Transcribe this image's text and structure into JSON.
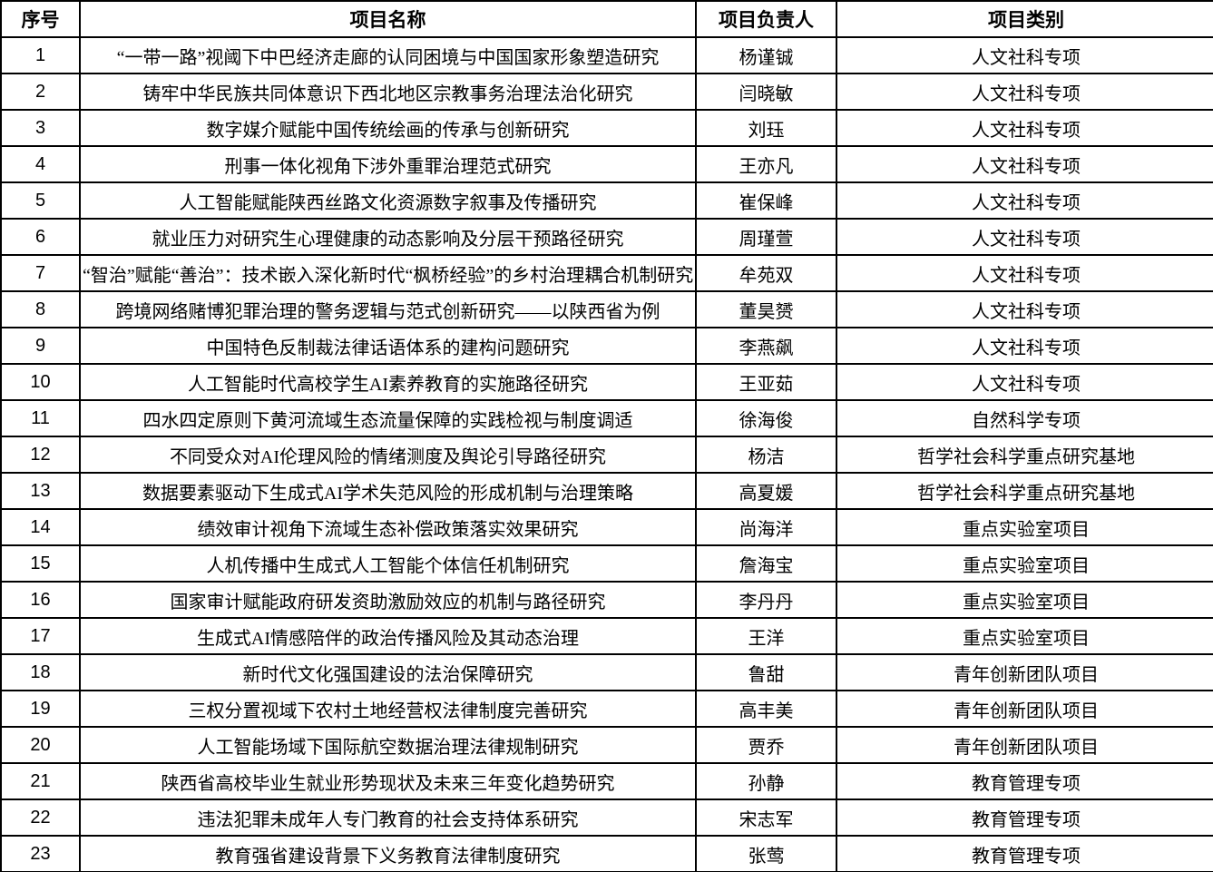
{
  "colors": {
    "border": "#000000",
    "text": "#000000",
    "background": "#ffffff"
  },
  "table": {
    "headers": {
      "no": "序号",
      "name": "项目名称",
      "leader": "项目负责人",
      "category": "项目类别"
    },
    "rows": [
      {
        "no": "1",
        "name": "“一带一路”视阈下中巴经济走廊的认同困境与中国国家形象塑造研究",
        "leader": "杨谨铖",
        "category": "人文社科专项"
      },
      {
        "no": "2",
        "name": "铸牢中华民族共同体意识下西北地区宗教事务治理法治化研究",
        "leader": "闫晓敏",
        "category": "人文社科专项"
      },
      {
        "no": "3",
        "name": "数字媒介赋能中国传统绘画的传承与创新研究",
        "leader": "刘珏",
        "category": "人文社科专项"
      },
      {
        "no": "4",
        "name": "刑事一体化视角下涉外重罪治理范式研究",
        "leader": "王亦凡",
        "category": "人文社科专项"
      },
      {
        "no": "5",
        "name": "人工智能赋能陕西丝路文化资源数字叙事及传播研究",
        "leader": "崔保峰",
        "category": "人文社科专项"
      },
      {
        "no": "6",
        "name": "就业压力对研究生心理健康的动态影响及分层干预路径研究",
        "leader": "周瑾萱",
        "category": "人文社科专项"
      },
      {
        "no": "7",
        "name": "“智治”赋能“善治”：技术嵌入深化新时代“枫桥经验”的乡村治理耦合机制研究",
        "leader": "牟苑双",
        "category": "人文社科专项"
      },
      {
        "no": "8",
        "name": "跨境网络赌博犯罪治理的警务逻辑与范式创新研究——以陕西省为例",
        "leader": "董昊赟",
        "category": "人文社科专项"
      },
      {
        "no": "9",
        "name": "中国特色反制裁法律话语体系的建构问题研究",
        "leader": "李燕飙",
        "category": "人文社科专项"
      },
      {
        "no": "10",
        "name": "人工智能时代高校学生AI素养教育的实施路径研究",
        "leader": "王亚茹",
        "category": "人文社科专项"
      },
      {
        "no": "11",
        "name": "四水四定原则下黄河流域生态流量保障的实践检视与制度调适",
        "leader": "徐海俊",
        "category": "自然科学专项"
      },
      {
        "no": "12",
        "name": "不同受众对AI伦理风险的情绪测度及舆论引导路径研究",
        "leader": "杨洁",
        "category": "哲学社会科学重点研究基地"
      },
      {
        "no": "13",
        "name": "数据要素驱动下生成式AI学术失范风险的形成机制与治理策略",
        "leader": "高夏媛",
        "category": "哲学社会科学重点研究基地"
      },
      {
        "no": "14",
        "name": "绩效审计视角下流域生态补偿政策落实效果研究",
        "leader": "尚海洋",
        "category": "重点实验室项目"
      },
      {
        "no": "15",
        "name": "人机传播中生成式人工智能个体信任机制研究",
        "leader": "詹海宝",
        "category": "重点实验室项目"
      },
      {
        "no": "16",
        "name": "国家审计赋能政府研发资助激励效应的机制与路径研究",
        "leader": "李丹丹",
        "category": "重点实验室项目"
      },
      {
        "no": "17",
        "name": "生成式AI情感陪伴的政治传播风险及其动态治理",
        "leader": "王洋",
        "category": "重点实验室项目"
      },
      {
        "no": "18",
        "name": "新时代文化强国建设的法治保障研究",
        "leader": "鲁甜",
        "category": "青年创新团队项目"
      },
      {
        "no": "19",
        "name": "三权分置视域下农村土地经营权法律制度完善研究",
        "leader": "高丰美",
        "category": "青年创新团队项目"
      },
      {
        "no": "20",
        "name": "人工智能场域下国际航空数据治理法律规制研究",
        "leader": "贾乔",
        "category": "青年创新团队项目"
      },
      {
        "no": "21",
        "name": "陕西省高校毕业生就业形势现状及未来三年变化趋势研究",
        "leader": "孙静",
        "category": "教育管理专项"
      },
      {
        "no": "22",
        "name": "违法犯罪未成年人专门教育的社会支持体系研究",
        "leader": "宋志军",
        "category": "教育管理专项"
      },
      {
        "no": "23",
        "name": "教育强省建设背景下义务教育法律制度研究",
        "leader": "张莺",
        "category": "教育管理专项"
      }
    ]
  }
}
